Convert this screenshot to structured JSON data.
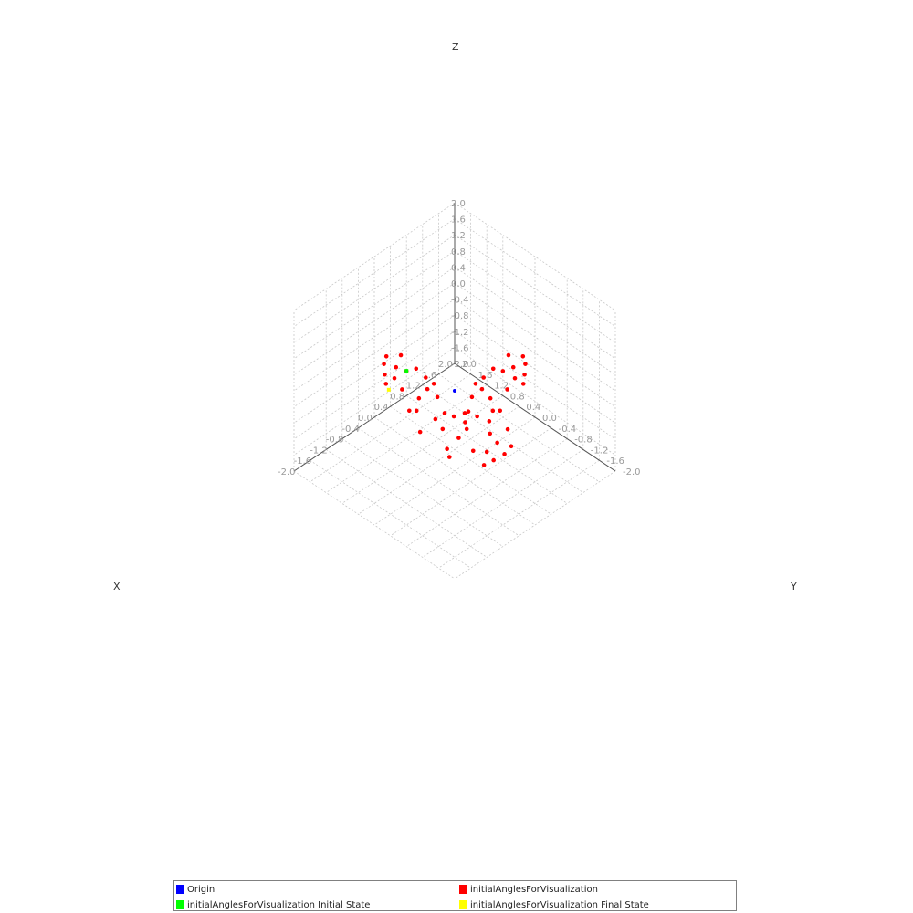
{
  "chart_data": {
    "type": "scatter3d",
    "axes": {
      "x": {
        "label": "X",
        "range": [
          -2.0,
          2.0
        ]
      },
      "y": {
        "label": "Y",
        "range": [
          -2.0,
          2.0
        ]
      },
      "z": {
        "label": "Z",
        "range": [
          -2.0,
          2.0
        ]
      }
    },
    "ticks": [
      2.0,
      1.6,
      1.2,
      0.8,
      0.4,
      0.0,
      -0.4,
      -0.8,
      -1.2,
      -1.6,
      -2.0
    ],
    "tick_labels": [
      "2.0",
      "1.6",
      "1.2",
      "0.8",
      "0.4",
      "0.0",
      "-0.4",
      "-0.8",
      "-1.2",
      "-1.6",
      "-2.0"
    ],
    "grid": true,
    "legend_position": "bottom",
    "series": [
      {
        "name": "Origin",
        "color": "#0000ff",
        "points": [
          [
            0,
            0,
            0
          ]
        ]
      },
      {
        "name": "initialAnglesForVisualization",
        "color": "#ff0000",
        "points": [
          [
            -0.02,
            -1.73,
            -1.0
          ],
          [
            -0.02,
            -1.76,
            -0.79
          ],
          [
            -0.02,
            -1.78,
            -0.54
          ],
          [
            -0.02,
            -1.72,
            -0.31
          ],
          [
            -0.02,
            -1.48,
            -0.42
          ],
          [
            -0.02,
            -1.52,
            -0.72
          ],
          [
            -0.02,
            -1.33,
            -0.87
          ],
          [
            -0.02,
            -1.22,
            -0.34
          ],
          [
            -0.02,
            -1.36,
            -0.04
          ],
          [
            -0.02,
            -0.97,
            -1.16
          ],
          [
            -0.02,
            -0.91,
            -0.81
          ],
          [
            -0.02,
            -1.15,
            -1.28
          ],
          [
            -0.02,
            -0.7,
            -0.44
          ],
          [
            -0.02,
            -0.32,
            -1.18
          ],
          [
            -0.02,
            -0.27,
            -0.75
          ],
          [
            -0.02,
            -0.74,
            -0.18
          ],
          [
            -0.02,
            -0.45,
            -0.47
          ],
          [
            -0.02,
            -0.54,
            -0.2
          ],
          [
            -0.02,
            -0.98,
            -0.12
          ],
          [
            -1.73,
            -0.02,
            -1.0
          ],
          [
            -1.76,
            -0.02,
            -0.79
          ],
          [
            -1.78,
            -0.02,
            -0.54
          ],
          [
            -1.72,
            -0.02,
            -0.31
          ],
          [
            -1.48,
            -0.02,
            -0.42
          ],
          [
            -1.52,
            -0.02,
            -0.72
          ],
          [
            -1.33,
            -0.02,
            -0.87
          ],
          [
            -1.22,
            -0.02,
            -0.34
          ],
          [
            -1.36,
            -0.02,
            -0.04
          ],
          [
            -0.97,
            -0.02,
            -1.16
          ],
          [
            -0.91,
            -0.02,
            -0.81
          ],
          [
            -1.15,
            -0.02,
            -1.28
          ],
          [
            -0.7,
            -0.02,
            -0.44
          ],
          [
            -0.32,
            -0.02,
            -1.18
          ],
          [
            -0.27,
            -0.02,
            -0.75
          ],
          [
            -0.74,
            -0.02,
            -0.18
          ],
          [
            -0.45,
            -0.02,
            -0.47
          ],
          [
            -0.54,
            -0.02,
            -0.2
          ],
          [
            -0.98,
            -0.02,
            -0.12
          ],
          [
            1.0,
            1.73,
            -0.02
          ],
          [
            0.79,
            1.76,
            -0.02
          ],
          [
            0.54,
            1.78,
            -0.02
          ],
          [
            0.31,
            1.72,
            -0.02
          ],
          [
            0.42,
            1.48,
            -0.02
          ],
          [
            0.72,
            1.52,
            -0.02
          ],
          [
            0.87,
            1.33,
            -0.02
          ],
          [
            0.34,
            1.22,
            -0.02
          ],
          [
            0.04,
            1.36,
            -0.02
          ],
          [
            1.16,
            0.97,
            -0.02
          ],
          [
            0.81,
            0.91,
            -0.02
          ],
          [
            1.28,
            1.15,
            -0.02
          ],
          [
            0.44,
            0.7,
            -0.02
          ],
          [
            1.18,
            0.32,
            -0.02
          ],
          [
            0.75,
            0.27,
            -0.02
          ],
          [
            0.18,
            0.74,
            -0.02
          ],
          [
            0.47,
            0.45,
            -0.02
          ],
          [
            0.2,
            0.54,
            -0.02
          ],
          [
            0.12,
            0.98,
            -0.02
          ]
        ]
      },
      {
        "name": "initialAnglesForVisualization Initial State",
        "color": "#00ff00",
        "points": [
          [
            0.2,
            -1.0,
            -0.04
          ]
        ]
      },
      {
        "name": "initialAnglesForVisualization Final State",
        "color": "#ffff00",
        "points": [
          [
            -0.02,
            -1.66,
            -1.1
          ]
        ]
      }
    ]
  },
  "legend": {
    "items": [
      {
        "label": "Origin",
        "color": "#0000ff"
      },
      {
        "label": "initialAnglesForVisualization",
        "color": "#ff0000"
      },
      {
        "label": "initialAnglesForVisualization Initial State",
        "color": "#00ff00"
      },
      {
        "label": "initialAnglesForVisualization Final State",
        "color": "#ffff00"
      }
    ]
  }
}
